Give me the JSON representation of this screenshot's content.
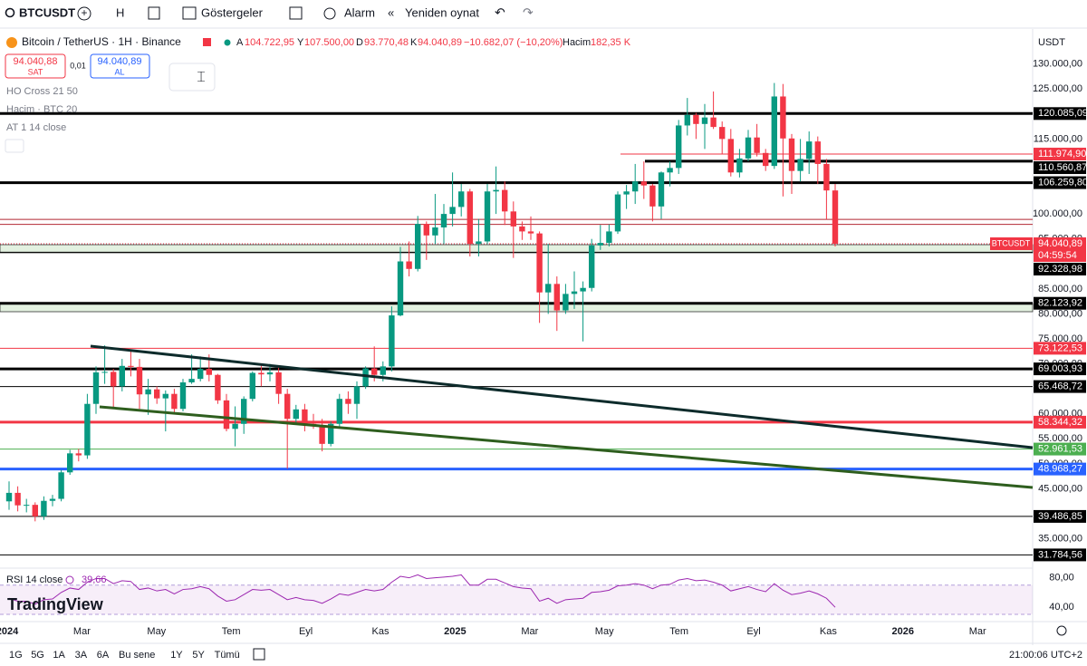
{
  "toolbar": {
    "symbol": "BTCUSDT",
    "interval": "H",
    "indicators": "Göstergeler",
    "alert": "Alarm",
    "replay": "Yeniden oynat"
  },
  "legend": {
    "name": "Bitcoin / TetherUS · 1H · Binance",
    "o_label": "A",
    "o": "104.722,95",
    "h_label": "Y",
    "h": "107.500,00",
    "l_label": "D",
    "l": "93.770,48",
    "c_label": "K",
    "c": "94.040,89",
    "change": "−10.682,07 (−10,20%)",
    "vol_label": "Hacim",
    "vol": "182,35 K"
  },
  "trade": {
    "sell_price": "94.040,88",
    "sell": "SAT",
    "spread": "0,01",
    "buy_price": "94.040,89",
    "buy": "AL"
  },
  "indicators": [
    "HO Cross 21 50",
    "Hacim · BTC 20",
    "AT 1 14 close"
  ],
  "currency": "USDT",
  "watermark": "TradingView",
  "chart_data": {
    "type": "candlestick",
    "up_color": "#089981",
    "down_color": "#f23645",
    "ylim": [
      29500,
      137000
    ],
    "yticks": [
      {
        "value": 130000,
        "label": "130.000,00"
      },
      {
        "value": 125000,
        "label": "125.000,00"
      },
      {
        "value": 115000,
        "label": "115.000,00"
      },
      {
        "value": 100000,
        "label": "100.000,00"
      },
      {
        "value": 95000,
        "label": "95.000,00"
      },
      {
        "value": 85000,
        "label": "85.000,00"
      },
      {
        "value": 80000,
        "label": "80.000,00"
      },
      {
        "value": 75000,
        "label": "75.000,00"
      },
      {
        "value": 70000,
        "label": "70.000,00"
      },
      {
        "value": 60000,
        "label": "60.000,00"
      },
      {
        "value": 55000,
        "label": "55.000,00"
      },
      {
        "value": 50000,
        "label": "50.000,00"
      },
      {
        "value": 45000,
        "label": "45.000,00"
      },
      {
        "value": 35000,
        "label": "35.000,00"
      }
    ],
    "time_labels": [
      "2024",
      "Mar",
      "May",
      "Tem",
      "Eyl",
      "Kas",
      "2025",
      "Mar",
      "May",
      "Tem",
      "Eyl",
      "Kas",
      "2026",
      "Mar"
    ],
    "candles": [
      [
        42500,
        46500,
        40800,
        44200
      ],
      [
        44200,
        45500,
        40500,
        41700
      ],
      [
        41700,
        43000,
        40300,
        41800
      ],
      [
        41800,
        42300,
        38500,
        39500
      ],
      [
        39500,
        43500,
        38800,
        42600
      ],
      [
        42600,
        43800,
        41500,
        43000
      ],
      [
        43000,
        48800,
        42500,
        48300
      ],
      [
        48300,
        52800,
        47800,
        52100
      ],
      [
        52100,
        53000,
        50500,
        51700
      ],
      [
        51700,
        64000,
        51000,
        62000
      ],
      [
        62000,
        69500,
        60000,
        68300
      ],
      [
        68300,
        73700,
        66000,
        68400
      ],
      [
        68400,
        69000,
        61000,
        65500
      ],
      [
        65500,
        71000,
        64500,
        69600
      ],
      [
        69600,
        72700,
        67500,
        69400
      ],
      [
        69400,
        71000,
        61000,
        63900
      ],
      [
        63900,
        67000,
        59800,
        64900
      ],
      [
        64900,
        65500,
        62000,
        63100
      ],
      [
        63100,
        64700,
        56500,
        64000
      ],
      [
        64000,
        65000,
        60000,
        61000
      ],
      [
        61000,
        67000,
        60500,
        66300
      ],
      [
        66300,
        71900,
        66000,
        67000
      ],
      [
        67000,
        71500,
        66500,
        69000
      ],
      [
        69000,
        71900,
        66500,
        67800
      ],
      [
        67800,
        68000,
        62000,
        62700
      ],
      [
        62700,
        64000,
        56500,
        57000
      ],
      [
        57000,
        61500,
        53500,
        58000
      ],
      [
        58000,
        63500,
        56000,
        63000
      ],
      [
        63000,
        68500,
        62500,
        68200
      ],
      [
        68200,
        70000,
        65500,
        67900
      ],
      [
        67900,
        70000,
        66500,
        68300
      ],
      [
        68300,
        69500,
        62000,
        64000
      ],
      [
        64000,
        65000,
        49000,
        59000
      ],
      [
        59000,
        61800,
        58000,
        60900
      ],
      [
        60900,
        62000,
        56500,
        58000
      ],
      [
        58000,
        60000,
        57000,
        57500
      ],
      [
        57500,
        59000,
        52500,
        54000
      ],
      [
        54000,
        58500,
        53500,
        58000
      ],
      [
        58000,
        64000,
        57500,
        63000
      ],
      [
        63000,
        64500,
        60000,
        62000
      ],
      [
        62000,
        66500,
        59000,
        65500
      ],
      [
        65500,
        69500,
        65000,
        69100
      ],
      [
        69100,
        73500,
        66500,
        67800
      ],
      [
        67800,
        70500,
        66500,
        69500
      ],
      [
        69500,
        81500,
        68500,
        79700
      ],
      [
        79700,
        93400,
        79500,
        90500
      ],
      [
        90500,
        94500,
        87500,
        89000
      ],
      [
        89000,
        99600,
        88500,
        98000
      ],
      [
        98000,
        98500,
        90800,
        95700
      ],
      [
        95700,
        104000,
        94000,
        97300
      ],
      [
        97300,
        102000,
        94000,
        100000
      ],
      [
        100000,
        108300,
        97500,
        101400
      ],
      [
        101400,
        106000,
        99500,
        104500
      ],
      [
        104500,
        105000,
        91500,
        94000
      ],
      [
        94000,
        99000,
        91500,
        94500
      ],
      [
        94500,
        106000,
        94000,
        104500
      ],
      [
        104500,
        109500,
        100000,
        104800
      ],
      [
        104800,
        106500,
        97800,
        100500
      ],
      [
        100500,
        102500,
        91200,
        97500
      ],
      [
        97500,
        98500,
        94800,
        96500
      ],
      [
        96500,
        99500,
        94800,
        96100
      ],
      [
        96100,
        96500,
        78200,
        84300
      ],
      [
        84300,
        94000,
        80000,
        86000
      ],
      [
        86000,
        87500,
        76600,
        80700
      ],
      [
        80700,
        86000,
        80000,
        84000
      ],
      [
        84000,
        88500,
        81000,
        84500
      ],
      [
        84500,
        86500,
        74500,
        85200
      ],
      [
        85200,
        95000,
        84500,
        93700
      ],
      [
        93700,
        97800,
        92800,
        94200
      ],
      [
        94200,
        97900,
        93500,
        96500
      ],
      [
        96500,
        104500,
        96000,
        103900
      ],
      [
        103900,
        105800,
        101000,
        104500
      ],
      [
        104500,
        110000,
        102000,
        106500
      ],
      [
        106500,
        110500,
        103000,
        105700
      ],
      [
        105700,
        106000,
        98500,
        101500
      ],
      [
        101500,
        108500,
        99000,
        108300
      ],
      [
        108300,
        110500,
        105500,
        109200
      ],
      [
        109200,
        118800,
        108000,
        117700
      ],
      [
        117700,
        123200,
        115700,
        119800
      ],
      [
        119800,
        120200,
        115000,
        118000
      ],
      [
        118000,
        122000,
        113000,
        119300
      ],
      [
        119300,
        124500,
        117000,
        117400
      ],
      [
        117400,
        118500,
        112000,
        115000
      ],
      [
        115000,
        117000,
        107500,
        108300
      ],
      [
        108300,
        113000,
        107300,
        111100
      ],
      [
        111100,
        116800,
        110500,
        115300
      ],
      [
        115300,
        118000,
        111500,
        112200
      ],
      [
        112200,
        113000,
        108600,
        109600
      ],
      [
        109600,
        126200,
        109000,
        123500
      ],
      [
        123500,
        126000,
        103500,
        115100
      ],
      [
        115100,
        116000,
        104000,
        108600
      ],
      [
        108600,
        115000,
        106500,
        111000
      ],
      [
        111000,
        116500,
        108000,
        114500
      ],
      [
        114500,
        115500,
        106000,
        110000
      ],
      [
        110000,
        111000,
        98900,
        104700
      ],
      [
        104700,
        106000,
        93500,
        94040.89
      ]
    ],
    "lines": [
      {
        "value": 120085.09,
        "label": "120.085,09",
        "color": "#000000",
        "width": 3
      },
      {
        "value": 111974.9,
        "label": "111.974,90",
        "color": "#f23645",
        "width": 1
      },
      {
        "value": 110560.87,
        "label": "110.560,87",
        "color": "#000000",
        "width": 3
      },
      {
        "value": 106259.8,
        "label": "106.259,80",
        "color": "#000000",
        "width": 3
      },
      {
        "value": 98900,
        "color": "#b22833",
        "width": 1
      },
      {
        "value": 97900,
        "color": "#b22833",
        "width": 1
      },
      {
        "value": 92328.98,
        "label": "92.328,98",
        "color": "#000000",
        "width": 1
      },
      {
        "value": 82123.92,
        "label": "82.123,92",
        "color": "#000000",
        "width": 3
      },
      {
        "value": 73122.53,
        "label": "73.122,53",
        "color": "#f23645",
        "width": 1
      },
      {
        "value": 69003.93,
        "label": "69.003,93",
        "color": "#000000",
        "width": 3
      },
      {
        "value": 65468.72,
        "label": "65.468,72",
        "color": "#000000",
        "width": 1
      },
      {
        "value": 58344.32,
        "label": "58.344,32",
        "color": "#f23645",
        "width": 3
      },
      {
        "value": 52961.53,
        "label": "52.961,53",
        "color": "#4caf50",
        "width": 1
      },
      {
        "value": 48968.27,
        "label": "48.968,27",
        "color": "#2962ff",
        "width": 3
      },
      {
        "value": 39486.85,
        "label": "39.486,85",
        "color": "#000000",
        "width": 1
      },
      {
        "value": 31784.56,
        "label": "31.784,56",
        "color": "#000000",
        "width": 1
      }
    ],
    "last_price": {
      "value": 94040.89,
      "label": "94.040,89",
      "symbol": "BTCUSDT",
      "countdown": "04:59:54",
      "color": "#f23645"
    },
    "rsi": {
      "title": "RSI 14 close",
      "value": 39.66,
      "value_label": "39,66",
      "color": "#9c27b0",
      "ylim": [
        20,
        92
      ],
      "yticks": [
        {
          "value": 80,
          "label": "80,00"
        },
        {
          "value": 40,
          "label": "40,00"
        }
      ],
      "band": [
        30,
        70
      ],
      "values": [
        52,
        48,
        48,
        44,
        50,
        51,
        60,
        66,
        64,
        74,
        79,
        79,
        72,
        76,
        75,
        64,
        66,
        62,
        64,
        58,
        64,
        65,
        68,
        65,
        55,
        48,
        50,
        57,
        64,
        63,
        64,
        57,
        50,
        53,
        50,
        49,
        45,
        51,
        58,
        56,
        60,
        64,
        62,
        64,
        74,
        82,
        80,
        84,
        79,
        80,
        81,
        82,
        84,
        70,
        70,
        78,
        78,
        73,
        68,
        66,
        65,
        48,
        52,
        45,
        50,
        51,
        52,
        60,
        61,
        63,
        69,
        70,
        72,
        70,
        65,
        70,
        71,
        77,
        79,
        76,
        77,
        74,
        70,
        62,
        65,
        68,
        64,
        61,
        72,
        63,
        57,
        59,
        62,
        58,
        52,
        39.66
      ]
    }
  },
  "bottom_bar": {
    "ranges": [
      "1G",
      "5G",
      "1A",
      "3A",
      "6A",
      "Bu sene",
      "1Y",
      "5Y",
      "Tümü"
    ],
    "clock": "21:00:06 UTC+2"
  }
}
